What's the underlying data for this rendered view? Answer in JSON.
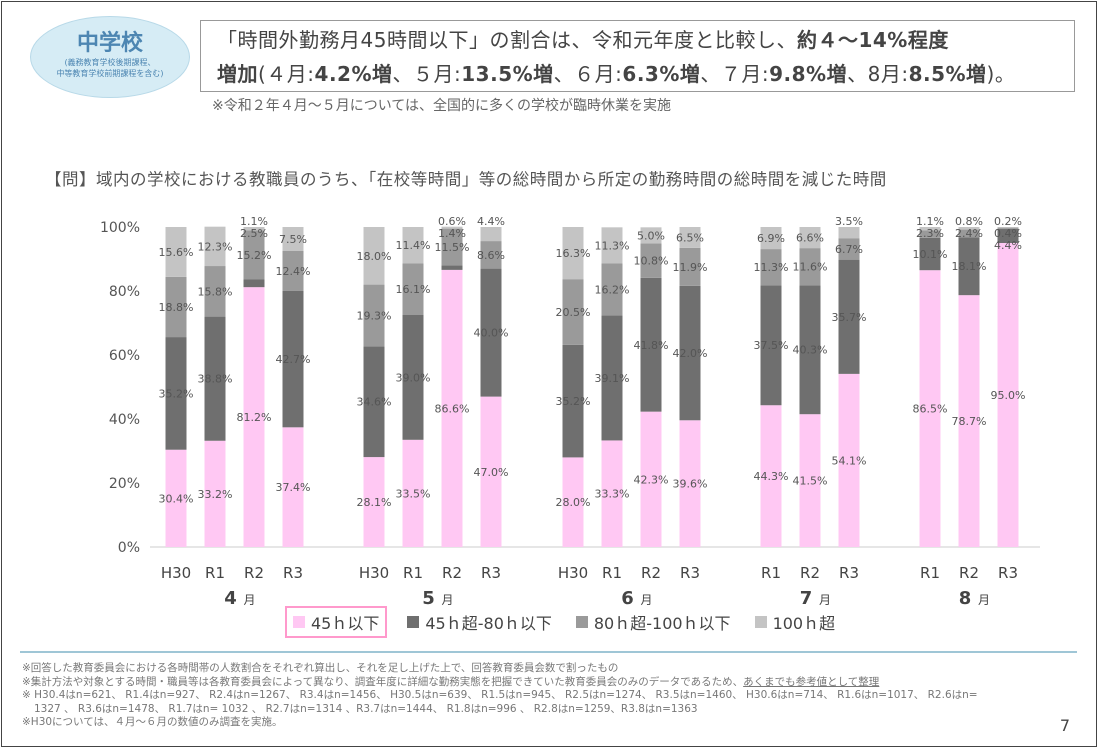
{
  "header": {
    "badge_title": "中学校",
    "badge_sub1": "(義務教育学校後期課程、",
    "badge_sub2": "中等教育学校前期課程を含む)",
    "callout_line1_a": "「時間外勤務月45時間以下」の割合は、令和元年度と比較し、",
    "callout_line1_b": "約４〜14%程度",
    "callout_line2_a": "増加",
    "callout_line2_b": "(４月:",
    "callout_line2_c": "4.2%増",
    "callout_line2_d": "、５月:",
    "callout_line2_e": "13.5%増",
    "callout_line2_f": "、６月:",
    "callout_line2_g": "6.3%増",
    "callout_line2_h": "、７月:",
    "callout_line2_i": "9.8%増",
    "callout_line2_j": "、8月:",
    "callout_line2_k": "8.5%増",
    "callout_line2_l": ")。",
    "note": "※令和２年４月〜５月については、全国的に多くの学校が臨時休業を実施"
  },
  "question": "【問】域内の学校における教職員のうち、「在校等時間」等の総時間から所定の勤務時間の総時間を減じた時間",
  "chart_data": {
    "type": "bar",
    "stacked": true,
    "ylim": [
      0,
      100
    ],
    "yticks": [
      "0%",
      "20%",
      "40%",
      "60%",
      "80%",
      "100%"
    ],
    "series_names": [
      "45ｈ以下",
      "45ｈ超-80ｈ以下",
      "80ｈ超-100ｈ以下",
      "100ｈ超"
    ],
    "colors": [
      "#ffc8f3",
      "#6f6f6f",
      "#9a9a9a",
      "#c4c4c4"
    ],
    "groups": [
      {
        "label": "4",
        "unit": "月",
        "bars": [
          {
            "cat": "H30",
            "values": [
              30.4,
              35.2,
              18.8,
              15.6
            ]
          },
          {
            "cat": "R1",
            "values": [
              33.2,
              38.8,
              15.8,
              12.3
            ]
          },
          {
            "cat": "R2",
            "values": [
              81.2,
              2.5,
              15.2,
              1.1
            ]
          },
          {
            "cat": "R3",
            "values": [
              37.4,
              42.7,
              12.4,
              7.5
            ]
          }
        ]
      },
      {
        "label": "5",
        "unit": "月",
        "bars": [
          {
            "cat": "H30",
            "values": [
              28.1,
              34.6,
              19.3,
              18.0
            ]
          },
          {
            "cat": "R1",
            "values": [
              33.5,
              39.0,
              16.1,
              11.4
            ]
          },
          {
            "cat": "R2",
            "values": [
              86.6,
              1.4,
              11.5,
              0.6
            ]
          },
          {
            "cat": "R3",
            "values": [
              47.0,
              40.0,
              8.6,
              4.4
            ]
          }
        ]
      },
      {
        "label": "6",
        "unit": "月",
        "bars": [
          {
            "cat": "H30",
            "values": [
              28.0,
              35.2,
              20.5,
              16.3
            ]
          },
          {
            "cat": "R1",
            "values": [
              33.3,
              39.1,
              16.2,
              11.3
            ]
          },
          {
            "cat": "R2",
            "values": [
              42.3,
              41.8,
              10.8,
              5.0
            ]
          },
          {
            "cat": "R3",
            "values": [
              39.6,
              42.0,
              11.9,
              6.5
            ]
          }
        ]
      },
      {
        "label": "7",
        "unit": "月",
        "bars": [
          {
            "cat": "R1",
            "values": [
              44.3,
              37.5,
              11.3,
              6.9
            ]
          },
          {
            "cat": "R2",
            "values": [
              41.5,
              40.3,
              11.6,
              6.6
            ]
          },
          {
            "cat": "R3",
            "values": [
              54.1,
              35.7,
              6.7,
              3.5
            ]
          }
        ]
      },
      {
        "label": "8",
        "unit": "月",
        "bars": [
          {
            "cat": "R1",
            "values": [
              86.5,
              10.1,
              2.3,
              1.1
            ]
          },
          {
            "cat": "R2",
            "values": [
              78.7,
              18.1,
              2.4,
              0.8
            ]
          },
          {
            "cat": "R3",
            "values": [
              95.0,
              4.4,
              0.4,
              0.2
            ]
          }
        ]
      }
    ]
  },
  "footer": {
    "line1": "※回答した教育委員会における各時間帯の人数割合をそれぞれ算出し、それを足し上げた上で、回答教育委員会数で割ったもの",
    "line2a": "※集計方法や対象とする時間・職員等は各教育委員会によって異なり、調査年度に詳細な勤務実態を把握できていた教育委員会のみのデータであるため、",
    "line2b": "あくまでも参考値として整理",
    "line3": "※ H30.4はn=621、 R1.4はn=927、 R2.4はn=1267、 R3.4はn=1456、 H30.5はn=639、 R1.5はn=945、 R2.5はn=1274、 R3.5はn=1460、  H30.6はn=714、 R1.6はn=1017、 R2.6はn=",
    "line4": "1327 、 R3.6はn=1478、 R1.7はn= 1032 、 R2.7はn=1314 、R3.7はn=1444、 R1.8はn=996 、 R2.8はn=1259、R3.8はn=1363",
    "line5": "※H30については、４月〜６月の数値のみ調査を実施。",
    "page_number": "7"
  }
}
